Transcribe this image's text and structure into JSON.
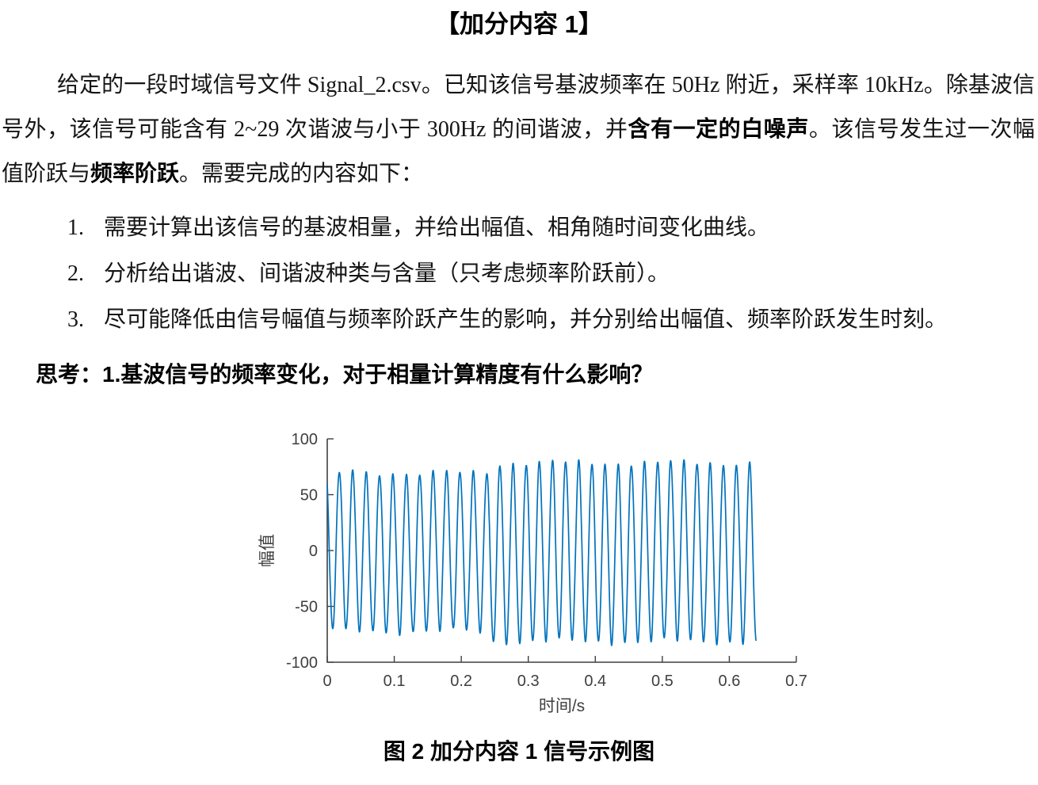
{
  "page": {
    "title": "【加分内容 1】",
    "intro": {
      "seg1": "给定的一段时域信号文件 Signal_2.csv。已知该信号基波频率在 50Hz 附近，采样率 10kHz。除基波信号外，该信号可能含有 2~29 次谐波与小于 300Hz 的间谐波，并",
      "bold1": "含有一定的白噪声",
      "seg2": "。该信号发生过一次幅值阶跃与",
      "bold2": "频率阶跃",
      "seg3": "。需要完成的内容如下："
    },
    "tasks": [
      {
        "num": "1.",
        "text": "需要计算出该信号的基波相量，并给出幅值、相角随时间变化曲线。"
      },
      {
        "num": "2.",
        "text": "分析给出谐波、间谐波种类与含量（只考虑频率阶跃前）。"
      },
      {
        "num": "3.",
        "text": "尽可能降低由信号幅值与频率阶跃产生的影响，并分别给出幅值、频率阶跃发生时刻。"
      }
    ],
    "question": "思考：1.基波信号的频率变化，对于相量计算精度有什么影响？",
    "figure_caption": "图 2 加分内容 1 信号示例图"
  },
  "chart_data": {
    "type": "line",
    "title": "",
    "xlabel": "时间/s",
    "ylabel": "幅值",
    "xlim": [
      0,
      0.7
    ],
    "ylim": [
      -100,
      100
    ],
    "xticks": [
      "0",
      "0.1",
      "0.2",
      "0.3",
      "0.4",
      "0.5",
      "0.6",
      "0.7"
    ],
    "yticks": [
      "-100",
      "-50",
      "0",
      "50",
      "100"
    ],
    "grid": false,
    "legend": "none",
    "line_color": "#0072BD",
    "axis_color": "#3f3f3f",
    "signal": {
      "description": "≈50 Hz sine, amplitude ≈71 before step at ≈0.24 s, ≈80 after (amplitude + frequency step), record length ≈0.64 s, slight noise",
      "duration_s": 0.64,
      "fundamental_hz_before": 50,
      "fundamental_hz_after": 51,
      "phase_deg": 125,
      "dc_offset": -1.5,
      "amp_step_time_s": 0.242,
      "amplitude_before": 71,
      "amplitude_after": 80,
      "noise": [
        {
          "amp": 2.0,
          "freq": 6.1,
          "phase": 0.7
        },
        {
          "amp": 1.6,
          "freq": 133.0,
          "phase": 2.1
        }
      ]
    }
  }
}
